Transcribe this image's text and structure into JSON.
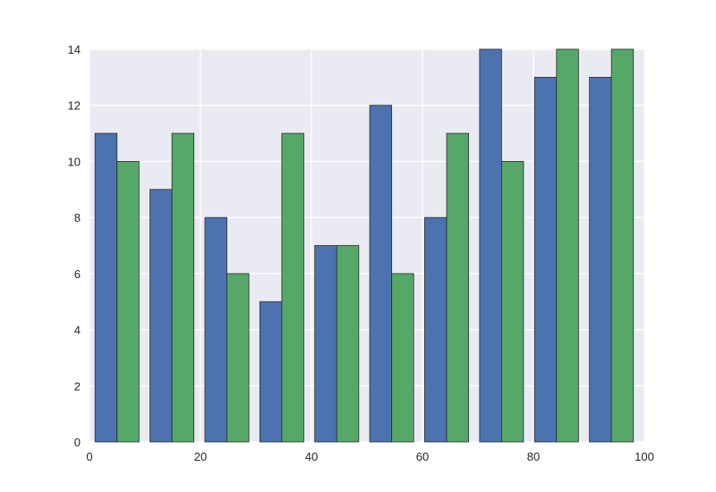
{
  "chart_data": {
    "type": "bar",
    "title": "",
    "xlabel": "",
    "ylabel": "",
    "xlim": [
      0,
      100
    ],
    "ylim": [
      0,
      14
    ],
    "x_ticks": [
      0,
      20,
      40,
      60,
      80,
      100
    ],
    "y_ticks": [
      0,
      2,
      4,
      6,
      8,
      10,
      12,
      14
    ],
    "grid": true,
    "legend": "none",
    "bin_edges": [
      1.0,
      10.9,
      20.8,
      30.7,
      40.6,
      50.5,
      60.4,
      70.3,
      80.2,
      90.1,
      100.0
    ],
    "series": [
      {
        "color": "#4c72b0",
        "values": [
          11,
          9,
          8,
          5,
          7,
          12,
          8,
          14,
          13,
          13
        ]
      },
      {
        "color": "#55a868",
        "values": [
          10,
          11,
          6,
          11,
          7,
          6,
          11,
          10,
          14,
          14
        ]
      }
    ],
    "colors": {
      "background": "#eaeaf2",
      "grid": "#ffffff"
    }
  }
}
